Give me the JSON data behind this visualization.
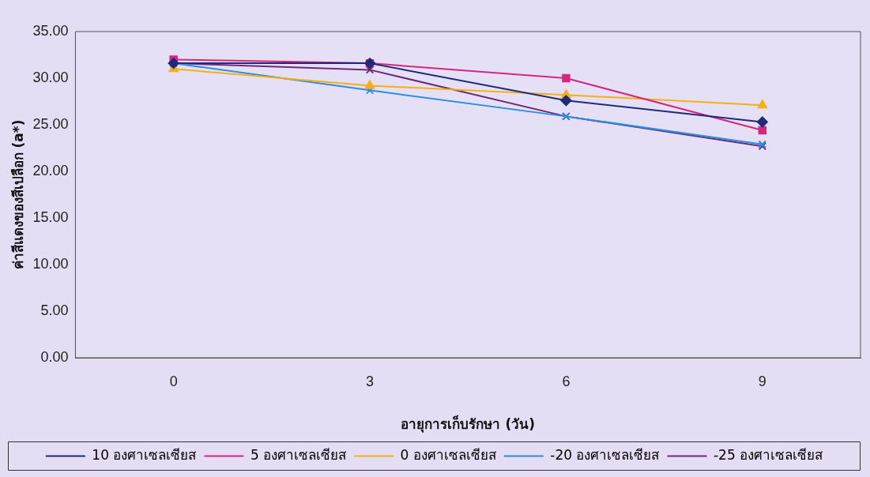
{
  "chart_data": {
    "type": "line",
    "xlabel": "อายุการเก็บรักษา (วัน)",
    "ylabel": "ค่าสีแดงของสีเปลือก (a*)",
    "categories": [
      "0",
      "3",
      "6",
      "9"
    ],
    "ylim": [
      0,
      35
    ],
    "yticks": [
      {
        "value": 0,
        "label": "0.00"
      },
      {
        "value": 5,
        "label": "5.00"
      },
      {
        "value": 10,
        "label": "10.00"
      },
      {
        "value": 15,
        "label": "15.00"
      },
      {
        "value": 20,
        "label": "20.00"
      },
      {
        "value": 25,
        "label": "25.00"
      },
      {
        "value": 30,
        "label": "30.00"
      },
      {
        "value": 35,
        "label": "35.00"
      }
    ],
    "grid": false,
    "legend": "bottom",
    "line_style": "solid",
    "series": [
      {
        "name": "10 องศาเซลเซียส",
        "color": "#1f2a7a",
        "marker": "diamond",
        "values": [
          31.6,
          31.6,
          27.6,
          25.3
        ]
      },
      {
        "name": "5 องศาเซลเซียส",
        "color": "#d6267e",
        "marker": "square",
        "values": [
          32.0,
          31.6,
          30.0,
          24.4
        ]
      },
      {
        "name": "0 องศาเซลเซียส",
        "color": "#f5b014",
        "marker": "triangle",
        "values": [
          31.0,
          29.2,
          28.2,
          27.1
        ]
      },
      {
        "name": "-20 องศาเซลเซียส",
        "color": "#2a8fe0",
        "marker": "cross",
        "values": [
          31.6,
          28.7,
          25.9,
          22.9
        ]
      },
      {
        "name": "-25 องศาเซลเซียส",
        "color": "#6e2a78",
        "marker": "cross",
        "values": [
          31.6,
          30.9,
          25.9,
          22.7
        ]
      }
    ]
  }
}
